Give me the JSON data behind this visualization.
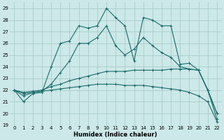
{
  "xlabel": "Humidex (Indice chaleur)",
  "background_color": "#cce8e8",
  "grid_color": "#aacccc",
  "line_color": "#1a6b6b",
  "xlim": [
    -0.5,
    22.5
  ],
  "ylim": [
    19,
    29.5
  ],
  "xticks": [
    0,
    1,
    2,
    3,
    4,
    5,
    6,
    7,
    8,
    9,
    10,
    11,
    12,
    13,
    14,
    15,
    16,
    17,
    18,
    19,
    20,
    21,
    22
  ],
  "yticks": [
    19,
    20,
    21,
    22,
    23,
    24,
    25,
    26,
    27,
    28,
    29
  ],
  "series": [
    [
      22.0,
      21.0,
      21.7,
      21.8,
      24.0,
      26.0,
      26.2,
      27.5,
      27.3,
      27.5,
      29.0,
      28.2,
      27.5,
      24.5,
      28.2,
      28.0,
      27.5,
      27.5,
      24.2,
      24.3,
      23.7,
      22.0,
      20.0
    ],
    [
      22.0,
      21.5,
      21.8,
      21.9,
      22.5,
      23.5,
      24.5,
      26.0,
      26.0,
      26.5,
      27.5,
      25.8,
      25.0,
      25.5,
      26.5,
      25.8,
      25.2,
      24.8,
      24.0,
      23.8,
      23.7,
      22.0,
      20.0
    ],
    [
      22.0,
      21.8,
      21.9,
      22.0,
      22.3,
      22.5,
      22.8,
      23.0,
      23.2,
      23.4,
      23.6,
      23.6,
      23.6,
      23.7,
      23.7,
      23.7,
      23.7,
      23.8,
      23.8,
      23.8,
      23.7,
      22.0,
      19.5
    ],
    [
      22.0,
      21.7,
      21.8,
      21.9,
      22.0,
      22.1,
      22.2,
      22.3,
      22.4,
      22.5,
      22.5,
      22.5,
      22.4,
      22.4,
      22.4,
      22.3,
      22.2,
      22.1,
      22.0,
      21.8,
      21.5,
      21.0,
      19.3
    ]
  ]
}
